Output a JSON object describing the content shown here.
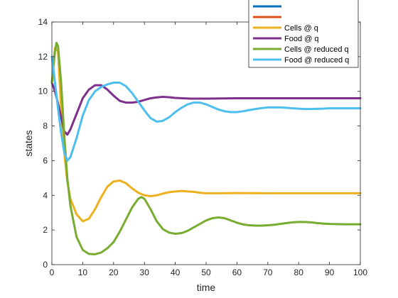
{
  "chart_data": {
    "type": "line",
    "xlabel": "time",
    "ylabel": "states",
    "xlim": [
      0,
      100
    ],
    "ylim": [
      0,
      14
    ],
    "xticks": [
      0,
      10,
      20,
      30,
      40,
      50,
      60,
      70,
      80,
      90,
      100
    ],
    "yticks": [
      0,
      2,
      4,
      6,
      8,
      10,
      12,
      14
    ],
    "grid": false,
    "legend_position": "top-right",
    "series": [
      {
        "name": "",
        "color": "#0072BD",
        "points": []
      },
      {
        "name": "",
        "color": "#D95319",
        "points": []
      },
      {
        "name": "Cells @ q",
        "color": "#EDB120",
        "points": [
          [
            0,
            10.5
          ],
          [
            1,
            12.5
          ],
          [
            2,
            12.3
          ],
          [
            3,
            9.0
          ],
          [
            4,
            6.5
          ],
          [
            5,
            4.8
          ],
          [
            6,
            3.8
          ],
          [
            8,
            2.9
          ],
          [
            10,
            2.5
          ],
          [
            12,
            2.65
          ],
          [
            14,
            3.2
          ],
          [
            16,
            3.9
          ],
          [
            18,
            4.5
          ],
          [
            20,
            4.8
          ],
          [
            22,
            4.85
          ],
          [
            24,
            4.7
          ],
          [
            26,
            4.4
          ],
          [
            28,
            4.15
          ],
          [
            30,
            4.0
          ],
          [
            32,
            3.95
          ],
          [
            34,
            4.0
          ],
          [
            36,
            4.1
          ],
          [
            38,
            4.18
          ],
          [
            40,
            4.22
          ],
          [
            42,
            4.25
          ],
          [
            44,
            4.22
          ],
          [
            46,
            4.2
          ],
          [
            48,
            4.15
          ],
          [
            50,
            4.12
          ],
          [
            55,
            4.12
          ],
          [
            60,
            4.13
          ],
          [
            70,
            4.12
          ],
          [
            80,
            4.12
          ],
          [
            90,
            4.12
          ],
          [
            100,
            4.12
          ]
        ]
      },
      {
        "name": "Food @ q",
        "color": "#7E2F8E",
        "points": [
          [
            0,
            10.5
          ],
          [
            1,
            10.0
          ],
          [
            2,
            9.3
          ],
          [
            3,
            8.5
          ],
          [
            4,
            7.7
          ],
          [
            5,
            7.5
          ],
          [
            6,
            7.8
          ],
          [
            8,
            8.7
          ],
          [
            10,
            9.6
          ],
          [
            12,
            10.1
          ],
          [
            14,
            10.35
          ],
          [
            16,
            10.35
          ],
          [
            18,
            10.1
          ],
          [
            20,
            9.75
          ],
          [
            22,
            9.45
          ],
          [
            24,
            9.35
          ],
          [
            26,
            9.35
          ],
          [
            28,
            9.4
          ],
          [
            30,
            9.5
          ],
          [
            32,
            9.6
          ],
          [
            34,
            9.65
          ],
          [
            36,
            9.68
          ],
          [
            38,
            9.66
          ],
          [
            40,
            9.62
          ],
          [
            45,
            9.58
          ],
          [
            50,
            9.58
          ],
          [
            60,
            9.6
          ],
          [
            70,
            9.6
          ],
          [
            80,
            9.6
          ],
          [
            90,
            9.6
          ],
          [
            100,
            9.6
          ]
        ]
      },
      {
        "name": "Cells @ reduced q",
        "color": "#77AC30",
        "points": [
          [
            0,
            10.5
          ],
          [
            1,
            12.3
          ],
          [
            1.5,
            12.8
          ],
          [
            2,
            12.6
          ],
          [
            3,
            10.5
          ],
          [
            4,
            7.5
          ],
          [
            5,
            5.0
          ],
          [
            6,
            3.4
          ],
          [
            8,
            1.6
          ],
          [
            10,
            0.85
          ],
          [
            12,
            0.62
          ],
          [
            14,
            0.6
          ],
          [
            16,
            0.7
          ],
          [
            18,
            0.95
          ],
          [
            20,
            1.3
          ],
          [
            22,
            1.9
          ],
          [
            24,
            2.6
          ],
          [
            26,
            3.3
          ],
          [
            28,
            3.8
          ],
          [
            29,
            3.9
          ],
          [
            30,
            3.8
          ],
          [
            32,
            3.2
          ],
          [
            34,
            2.5
          ],
          [
            36,
            2.05
          ],
          [
            38,
            1.85
          ],
          [
            40,
            1.78
          ],
          [
            42,
            1.82
          ],
          [
            44,
            1.95
          ],
          [
            46,
            2.15
          ],
          [
            48,
            2.35
          ],
          [
            50,
            2.55
          ],
          [
            52,
            2.68
          ],
          [
            54,
            2.72
          ],
          [
            56,
            2.68
          ],
          [
            58,
            2.55
          ],
          [
            60,
            2.42
          ],
          [
            62,
            2.32
          ],
          [
            64,
            2.27
          ],
          [
            66,
            2.25
          ],
          [
            68,
            2.25
          ],
          [
            70,
            2.27
          ],
          [
            72,
            2.3
          ],
          [
            74,
            2.35
          ],
          [
            76,
            2.4
          ],
          [
            78,
            2.44
          ],
          [
            80,
            2.46
          ],
          [
            82,
            2.46
          ],
          [
            84,
            2.44
          ],
          [
            86,
            2.4
          ],
          [
            88,
            2.37
          ],
          [
            90,
            2.35
          ],
          [
            95,
            2.33
          ],
          [
            100,
            2.33
          ]
        ]
      },
      {
        "name": "Food @ reduced q",
        "color": "#4DBEEE",
        "points": [
          [
            0,
            12.0
          ],
          [
            1,
            10.5
          ],
          [
            2,
            9.0
          ],
          [
            3,
            7.6
          ],
          [
            4,
            6.5
          ],
          [
            5,
            6.0
          ],
          [
            6,
            6.2
          ],
          [
            8,
            7.3
          ],
          [
            10,
            8.6
          ],
          [
            12,
            9.5
          ],
          [
            14,
            10.0
          ],
          [
            16,
            10.25
          ],
          [
            18,
            10.4
          ],
          [
            20,
            10.5
          ],
          [
            22,
            10.5
          ],
          [
            24,
            10.3
          ],
          [
            26,
            9.9
          ],
          [
            28,
            9.4
          ],
          [
            30,
            8.9
          ],
          [
            32,
            8.45
          ],
          [
            34,
            8.25
          ],
          [
            36,
            8.3
          ],
          [
            38,
            8.5
          ],
          [
            40,
            8.8
          ],
          [
            42,
            9.05
          ],
          [
            44,
            9.25
          ],
          [
            46,
            9.35
          ],
          [
            48,
            9.35
          ],
          [
            50,
            9.25
          ],
          [
            52,
            9.1
          ],
          [
            54,
            8.95
          ],
          [
            56,
            8.85
          ],
          [
            58,
            8.8
          ],
          [
            60,
            8.8
          ],
          [
            62,
            8.85
          ],
          [
            64,
            8.92
          ],
          [
            66,
            8.98
          ],
          [
            68,
            9.03
          ],
          [
            70,
            9.07
          ],
          [
            72,
            9.08
          ],
          [
            74,
            9.07
          ],
          [
            76,
            9.05
          ],
          [
            78,
            9.02
          ],
          [
            80,
            9.0
          ],
          [
            82,
            8.98
          ],
          [
            84,
            8.98
          ],
          [
            86,
            8.99
          ],
          [
            88,
            9.0
          ],
          [
            90,
            9.02
          ],
          [
            95,
            9.02
          ],
          [
            100,
            9.02
          ]
        ]
      }
    ]
  }
}
